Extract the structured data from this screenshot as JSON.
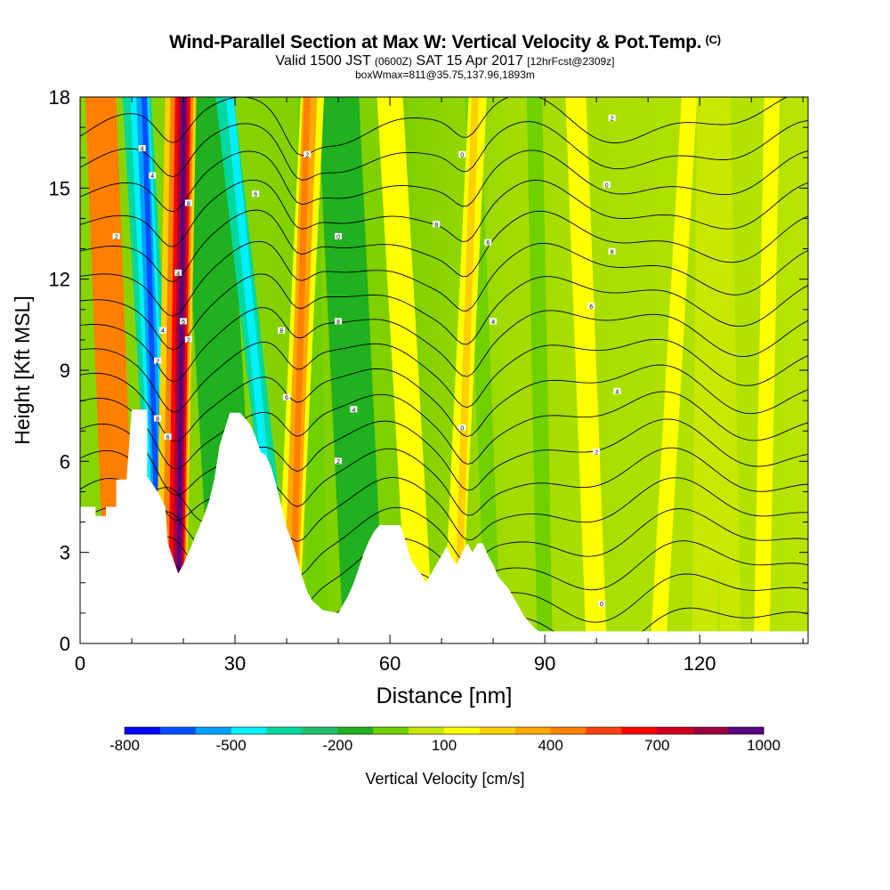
{
  "header": {
    "title": "Wind-Parallel Section at Max W: Vertical Velocity & Pot.Temp.",
    "copyright": "(C)",
    "valid_prefix": "Valid 1500 JST",
    "valid_z": "(0600Z)",
    "valid_suffix": "SAT 15 Apr 2017",
    "forecast": "[12hrFcst@2309z]",
    "box_info": "boxWmax=811@35.75,137.96,1893m"
  },
  "chart_data": {
    "type": "heatmap",
    "title": "Wind-Parallel Section at Max W: Vertical Velocity & Pot.Temp.",
    "xlabel": "Distance [nm]",
    "ylabel": "Height [Kft MSL]",
    "xlim": [
      0,
      141
    ],
    "ylim": [
      0,
      18
    ],
    "x_ticks": [
      0,
      30,
      60,
      90,
      120
    ],
    "y_ticks": [
      0,
      3,
      6,
      9,
      12,
      15,
      18
    ],
    "colorbar": {
      "label": "Vertical Velocity [cm/s]",
      "tick_labels": [
        "-800",
        "-500",
        "-200",
        "100",
        "400",
        "700",
        "1000"
      ],
      "levels": [
        -800,
        -700,
        -600,
        -500,
        -400,
        -300,
        -200,
        -100,
        0,
        100,
        200,
        300,
        400,
        500,
        600,
        700,
        800,
        900,
        1000
      ],
      "colors": [
        "#0000ff",
        "#0050ff",
        "#00a0ff",
        "#00f0ff",
        "#00d8a0",
        "#20c070",
        "#20b020",
        "#70d000",
        "#c8e800",
        "#ffff00",
        "#ffd000",
        "#ffa800",
        "#ff8000",
        "#ff4010",
        "#ff0000",
        "#d00020",
        "#a00040",
        "#5a0080"
      ]
    },
    "terrain_kft": [
      [
        0,
        4.5
      ],
      [
        3,
        4.5
      ],
      [
        3,
        4.2
      ],
      [
        5,
        4.2
      ],
      [
        5,
        4.5
      ],
      [
        7,
        4.5
      ],
      [
        7,
        5.4
      ],
      [
        9,
        5.4
      ],
      [
        10,
        7.7
      ],
      [
        13,
        7.7
      ],
      [
        13,
        5.5
      ],
      [
        15,
        5.0
      ],
      [
        16.5,
        4.5
      ],
      [
        17,
        3.3
      ],
      [
        18,
        2.8
      ],
      [
        19,
        2.3
      ],
      [
        20,
        2.6
      ],
      [
        21,
        3.0
      ],
      [
        22,
        3.4
      ],
      [
        23,
        3.8
      ],
      [
        24,
        4.2
      ],
      [
        25,
        4.7
      ],
      [
        26,
        5.4
      ],
      [
        27,
        6.5
      ],
      [
        29,
        7.6
      ],
      [
        31,
        7.6
      ],
      [
        33,
        7.2
      ],
      [
        34,
        6.8
      ],
      [
        35,
        6.3
      ],
      [
        36,
        6.2
      ],
      [
        37,
        5.8
      ],
      [
        38,
        5.2
      ],
      [
        39,
        4.5
      ],
      [
        40,
        3.8
      ],
      [
        41,
        3.4
      ],
      [
        42,
        2.8
      ],
      [
        43,
        2.2
      ],
      [
        44,
        1.7
      ],
      [
        45,
        1.4
      ],
      [
        47,
        1.1
      ],
      [
        50,
        1.0
      ],
      [
        51,
        1.3
      ],
      [
        52,
        1.6
      ],
      [
        53,
        2.0
      ],
      [
        54,
        2.5
      ],
      [
        55,
        3.0
      ],
      [
        56,
        3.4
      ],
      [
        57,
        3.7
      ],
      [
        58,
        3.9
      ],
      [
        62,
        3.9
      ],
      [
        63,
        3.4
      ],
      [
        64,
        2.8
      ],
      [
        65,
        2.5
      ],
      [
        66,
        2.3
      ],
      [
        67,
        2.0
      ],
      [
        68,
        2.3
      ],
      [
        69,
        2.6
      ],
      [
        70,
        2.9
      ],
      [
        71,
        3.2
      ],
      [
        72,
        2.8
      ],
      [
        73,
        2.6
      ],
      [
        74,
        3.0
      ],
      [
        75,
        3.3
      ],
      [
        76,
        3.0
      ],
      [
        77,
        3.3
      ],
      [
        78,
        3.3
      ],
      [
        79,
        2.9
      ],
      [
        80,
        2.6
      ],
      [
        81,
        2.2
      ],
      [
        82,
        2.0
      ],
      [
        83,
        1.8
      ],
      [
        84,
        1.5
      ],
      [
        85,
        1.2
      ],
      [
        86,
        0.9
      ],
      [
        87,
        0.7
      ],
      [
        88,
        0.5
      ],
      [
        89,
        0.4
      ],
      [
        141,
        0.4
      ]
    ],
    "theta_contour_labels": [
      {
        "x": 12,
        "y": 16.3,
        "text": "4"
      },
      {
        "x": 14,
        "y": 15.4,
        "text": "4"
      },
      {
        "x": 7,
        "y": 13.4,
        "text": "2"
      },
      {
        "x": 21,
        "y": 14.5,
        "text": "8"
      },
      {
        "x": 19,
        "y": 12.2,
        "text": "4"
      },
      {
        "x": 20,
        "y": 10.6,
        "text": "6"
      },
      {
        "x": 16,
        "y": 10.3,
        "text": "4"
      },
      {
        "x": 21,
        "y": 10.0,
        "text": "2"
      },
      {
        "x": 15,
        "y": 9.3,
        "text": "2"
      },
      {
        "x": 15,
        "y": 7.4,
        "text": "8"
      },
      {
        "x": 17,
        "y": 6.8,
        "text": "6"
      },
      {
        "x": 34,
        "y": 14.8,
        "text": "6"
      },
      {
        "x": 39,
        "y": 10.3,
        "text": "8"
      },
      {
        "x": 40,
        "y": 8.1,
        "text": "6"
      },
      {
        "x": 44,
        "y": 16.1,
        "text": "2"
      },
      {
        "x": 50,
        "y": 13.4,
        "text": "0"
      },
      {
        "x": 50,
        "y": 10.6,
        "text": "8"
      },
      {
        "x": 53,
        "y": 7.7,
        "text": "4"
      },
      {
        "x": 50,
        "y": 6.0,
        "text": "2"
      },
      {
        "x": 69,
        "y": 13.8,
        "text": "8"
      },
      {
        "x": 74,
        "y": 16.1,
        "text": "0"
      },
      {
        "x": 79,
        "y": 13.2,
        "text": "6"
      },
      {
        "x": 80,
        "y": 10.6,
        "text": "4"
      },
      {
        "x": 74,
        "y": 7.1,
        "text": "0"
      },
      {
        "x": 103,
        "y": 17.3,
        "text": "2"
      },
      {
        "x": 102,
        "y": 15.1,
        "text": "0"
      },
      {
        "x": 103,
        "y": 12.9,
        "text": "8"
      },
      {
        "x": 99,
        "y": 11.1,
        "text": "6"
      },
      {
        "x": 104,
        "y": 8.3,
        "text": "4"
      },
      {
        "x": 100,
        "y": 6.3,
        "text": "2"
      },
      {
        "x": 101,
        "y": 1.3,
        "text": "0"
      }
    ]
  }
}
